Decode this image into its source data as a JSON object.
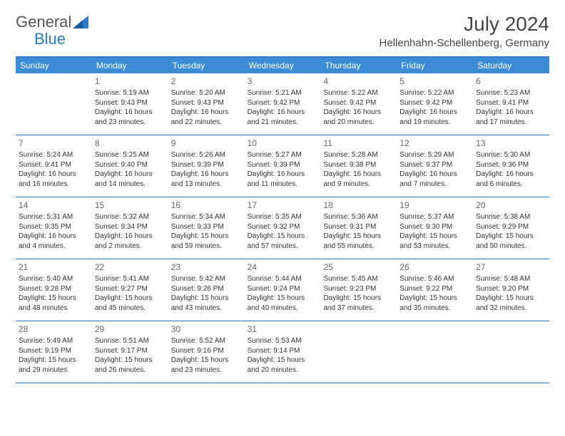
{
  "logo": {
    "text1": "General",
    "text2": "Blue"
  },
  "title": "July 2024",
  "location": "Hellenhahn-Schellenberg, Germany",
  "colors": {
    "header_bg": "#3b8cd4",
    "border": "#2d7bc4",
    "text": "#333333",
    "logo_gray": "#555555",
    "logo_blue": "#2d7bc4"
  },
  "dayNames": [
    "Sunday",
    "Monday",
    "Tuesday",
    "Wednesday",
    "Thursday",
    "Friday",
    "Saturday"
  ],
  "weeks": [
    [
      {
        "n": "",
        "l1": "",
        "l2": "",
        "l3": "",
        "l4": ""
      },
      {
        "n": "1",
        "l1": "Sunrise: 5:19 AM",
        "l2": "Sunset: 9:43 PM",
        "l3": "Daylight: 16 hours",
        "l4": "and 23 minutes."
      },
      {
        "n": "2",
        "l1": "Sunrise: 5:20 AM",
        "l2": "Sunset: 9:43 PM",
        "l3": "Daylight: 16 hours",
        "l4": "and 22 minutes."
      },
      {
        "n": "3",
        "l1": "Sunrise: 5:21 AM",
        "l2": "Sunset: 9:42 PM",
        "l3": "Daylight: 16 hours",
        "l4": "and 21 minutes."
      },
      {
        "n": "4",
        "l1": "Sunrise: 5:22 AM",
        "l2": "Sunset: 9:42 PM",
        "l3": "Daylight: 16 hours",
        "l4": "and 20 minutes."
      },
      {
        "n": "5",
        "l1": "Sunrise: 5:22 AM",
        "l2": "Sunset: 9:42 PM",
        "l3": "Daylight: 16 hours",
        "l4": "and 19 minutes."
      },
      {
        "n": "6",
        "l1": "Sunrise: 5:23 AM",
        "l2": "Sunset: 9:41 PM",
        "l3": "Daylight: 16 hours",
        "l4": "and 17 minutes."
      }
    ],
    [
      {
        "n": "7",
        "l1": "Sunrise: 5:24 AM",
        "l2": "Sunset: 9:41 PM",
        "l3": "Daylight: 16 hours",
        "l4": "and 16 minutes."
      },
      {
        "n": "8",
        "l1": "Sunrise: 5:25 AM",
        "l2": "Sunset: 9:40 PM",
        "l3": "Daylight: 16 hours",
        "l4": "and 14 minutes."
      },
      {
        "n": "9",
        "l1": "Sunrise: 5:26 AM",
        "l2": "Sunset: 9:39 PM",
        "l3": "Daylight: 16 hours",
        "l4": "and 13 minutes."
      },
      {
        "n": "10",
        "l1": "Sunrise: 5:27 AM",
        "l2": "Sunset: 9:39 PM",
        "l3": "Daylight: 16 hours",
        "l4": "and 11 minutes."
      },
      {
        "n": "11",
        "l1": "Sunrise: 5:28 AM",
        "l2": "Sunset: 9:38 PM",
        "l3": "Daylight: 16 hours",
        "l4": "and 9 minutes."
      },
      {
        "n": "12",
        "l1": "Sunrise: 5:29 AM",
        "l2": "Sunset: 9:37 PM",
        "l3": "Daylight: 16 hours",
        "l4": "and 7 minutes."
      },
      {
        "n": "13",
        "l1": "Sunrise: 5:30 AM",
        "l2": "Sunset: 9:36 PM",
        "l3": "Daylight: 16 hours",
        "l4": "and 6 minutes."
      }
    ],
    [
      {
        "n": "14",
        "l1": "Sunrise: 5:31 AM",
        "l2": "Sunset: 9:35 PM",
        "l3": "Daylight: 16 hours",
        "l4": "and 4 minutes."
      },
      {
        "n": "15",
        "l1": "Sunrise: 5:32 AM",
        "l2": "Sunset: 9:34 PM",
        "l3": "Daylight: 16 hours",
        "l4": "and 2 minutes."
      },
      {
        "n": "16",
        "l1": "Sunrise: 5:34 AM",
        "l2": "Sunset: 9:33 PM",
        "l3": "Daylight: 15 hours",
        "l4": "and 59 minutes."
      },
      {
        "n": "17",
        "l1": "Sunrise: 5:35 AM",
        "l2": "Sunset: 9:32 PM",
        "l3": "Daylight: 15 hours",
        "l4": "and 57 minutes."
      },
      {
        "n": "18",
        "l1": "Sunrise: 5:36 AM",
        "l2": "Sunset: 9:31 PM",
        "l3": "Daylight: 15 hours",
        "l4": "and 55 minutes."
      },
      {
        "n": "19",
        "l1": "Sunrise: 5:37 AM",
        "l2": "Sunset: 9:30 PM",
        "l3": "Daylight: 15 hours",
        "l4": "and 53 minutes."
      },
      {
        "n": "20",
        "l1": "Sunrise: 5:38 AM",
        "l2": "Sunset: 9:29 PM",
        "l3": "Daylight: 15 hours",
        "l4": "and 50 minutes."
      }
    ],
    [
      {
        "n": "21",
        "l1": "Sunrise: 5:40 AM",
        "l2": "Sunset: 9:28 PM",
        "l3": "Daylight: 15 hours",
        "l4": "and 48 minutes."
      },
      {
        "n": "22",
        "l1": "Sunrise: 5:41 AM",
        "l2": "Sunset: 9:27 PM",
        "l3": "Daylight: 15 hours",
        "l4": "and 45 minutes."
      },
      {
        "n": "23",
        "l1": "Sunrise: 5:42 AM",
        "l2": "Sunset: 9:26 PM",
        "l3": "Daylight: 15 hours",
        "l4": "and 43 minutes."
      },
      {
        "n": "24",
        "l1": "Sunrise: 5:44 AM",
        "l2": "Sunset: 9:24 PM",
        "l3": "Daylight: 15 hours",
        "l4": "and 40 minutes."
      },
      {
        "n": "25",
        "l1": "Sunrise: 5:45 AM",
        "l2": "Sunset: 9:23 PM",
        "l3": "Daylight: 15 hours",
        "l4": "and 37 minutes."
      },
      {
        "n": "26",
        "l1": "Sunrise: 5:46 AM",
        "l2": "Sunset: 9:22 PM",
        "l3": "Daylight: 15 hours",
        "l4": "and 35 minutes."
      },
      {
        "n": "27",
        "l1": "Sunrise: 5:48 AM",
        "l2": "Sunset: 9:20 PM",
        "l3": "Daylight: 15 hours",
        "l4": "and 32 minutes."
      }
    ],
    [
      {
        "n": "28",
        "l1": "Sunrise: 5:49 AM",
        "l2": "Sunset: 9:19 PM",
        "l3": "Daylight: 15 hours",
        "l4": "and 29 minutes."
      },
      {
        "n": "29",
        "l1": "Sunrise: 5:51 AM",
        "l2": "Sunset: 9:17 PM",
        "l3": "Daylight: 15 hours",
        "l4": "and 26 minutes."
      },
      {
        "n": "30",
        "l1": "Sunrise: 5:52 AM",
        "l2": "Sunset: 9:16 PM",
        "l3": "Daylight: 15 hours",
        "l4": "and 23 minutes."
      },
      {
        "n": "31",
        "l1": "Sunrise: 5:53 AM",
        "l2": "Sunset: 9:14 PM",
        "l3": "Daylight: 15 hours",
        "l4": "and 20 minutes."
      },
      {
        "n": "",
        "l1": "",
        "l2": "",
        "l3": "",
        "l4": ""
      },
      {
        "n": "",
        "l1": "",
        "l2": "",
        "l3": "",
        "l4": ""
      },
      {
        "n": "",
        "l1": "",
        "l2": "",
        "l3": "",
        "l4": ""
      }
    ]
  ]
}
